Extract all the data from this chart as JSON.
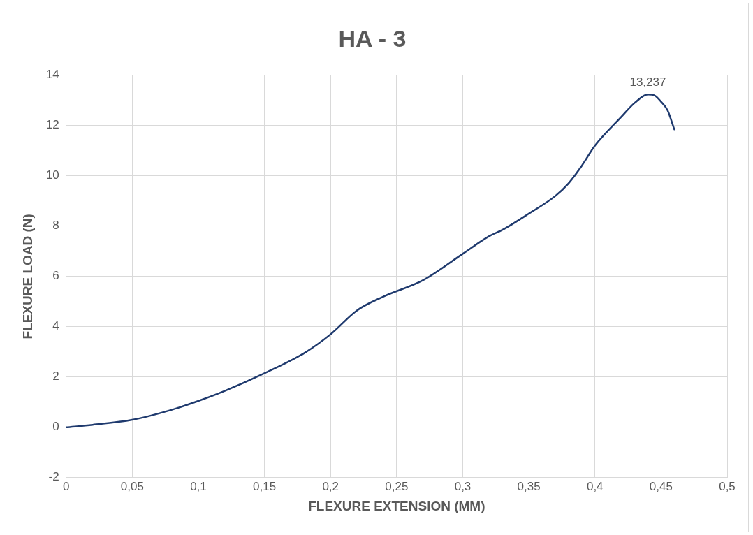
{
  "chart_data": {
    "type": "line",
    "title": "HA - 3",
    "xlabel": "FLEXURE EXTENSION (MM)",
    "ylabel": "FLEXURE LOAD (N)",
    "x": [
      0,
      0.02,
      0.05,
      0.08,
      0.1,
      0.12,
      0.15,
      0.18,
      0.2,
      0.22,
      0.24,
      0.27,
      0.3,
      0.32,
      0.33,
      0.35,
      0.37,
      0.38,
      0.39,
      0.4,
      0.42,
      0.43,
      0.44,
      0.445,
      0.45,
      0.455,
      0.46
    ],
    "series": [
      {
        "color": "#1f3a6e",
        "values": [
          0,
          0.1,
          0.3,
          0.7,
          1.05,
          1.45,
          2.15,
          2.95,
          3.7,
          4.65,
          5.2,
          5.85,
          6.9,
          7.6,
          7.85,
          8.5,
          9.2,
          9.7,
          10.4,
          11.2,
          12.35,
          12.9,
          13.237,
          13.2,
          12.95,
          12.6,
          11.85
        ]
      }
    ],
    "annotations": [
      {
        "text": "13,237",
        "x": 0.44,
        "y": 13.237
      }
    ],
    "xlim": [
      0,
      0.5
    ],
    "xticks": [
      0,
      {
        "value": 0.05,
        "label": "0,05"
      },
      {
        "value": 0.1,
        "label": "0,1"
      },
      {
        "value": 0.15,
        "label": "0,15"
      },
      {
        "value": 0.2,
        "label": "0,2"
      },
      {
        "value": 0.25,
        "label": "0,25"
      },
      {
        "value": 0.3,
        "label": "0,3"
      },
      {
        "value": 0.35,
        "label": "0,35"
      },
      {
        "value": 0.4,
        "label": "0,4"
      },
      {
        "value": 0.45,
        "label": "0,45"
      },
      {
        "value": 0.5,
        "label": "0,5"
      }
    ],
    "ylim": [
      -2,
      14
    ],
    "yticks": [
      -2,
      0,
      2,
      4,
      6,
      8,
      10,
      12,
      14
    ],
    "grid": true,
    "legend": false,
    "marker": "none",
    "line_style": "solid"
  }
}
